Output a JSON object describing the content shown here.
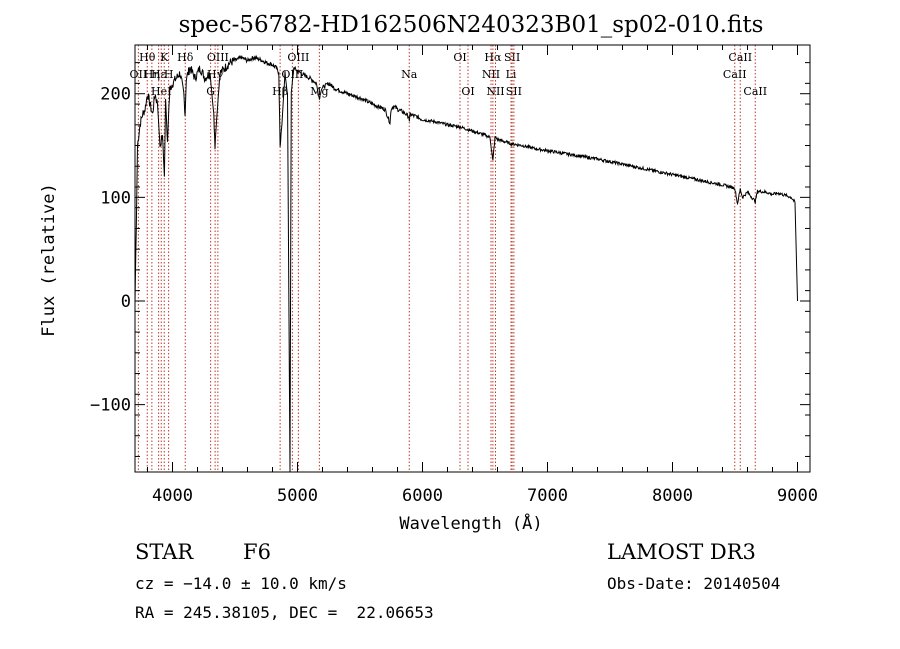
{
  "chart_data": {
    "type": "line",
    "title": "spec-56782-HD162506N240323B01_sp02-010.fits",
    "xlabel": "Wavelength (Å)",
    "ylabel": "Flux (relative)",
    "xlim": [
      3700,
      9100
    ],
    "ylim": [
      -165,
      247
    ],
    "x_ticks": [
      4000,
      5000,
      6000,
      7000,
      8000,
      9000
    ],
    "y_ticks": [
      -100,
      0,
      100,
      200
    ],
    "series": [
      {
        "name": "flux",
        "x": [
          3700,
          3710,
          3720,
          3740,
          3760,
          3780,
          3800,
          3820,
          3840,
          3860,
          3880,
          3900,
          3920,
          3935,
          3945,
          3960,
          3968,
          3980,
          4000,
          4030,
          4060,
          4090,
          4101,
          4110,
          4140,
          4180,
          4220,
          4260,
          4300,
          4330,
          4340,
          4350,
          4380,
          4420,
          4460,
          4500,
          4550,
          4600,
          4650,
          4700,
          4750,
          4800,
          4830,
          4850,
          4861,
          4875,
          4900,
          4920,
          4940,
          4950,
          4970,
          5000,
          5050,
          5100,
          5150,
          5175,
          5190,
          5250,
          5300,
          5400,
          5500,
          5600,
          5700,
          5740,
          5750,
          5770,
          5800,
          5850,
          5890,
          5895,
          5900,
          5950,
          6000,
          6100,
          6200,
          6300,
          6400,
          6500,
          6540,
          6563,
          6580,
          6600,
          6700,
          6800,
          6900,
          7000,
          7200,
          7400,
          7600,
          7800,
          8000,
          8200,
          8400,
          8498,
          8520,
          8542,
          8560,
          8600,
          8662,
          8680,
          8750,
          8800,
          8850,
          8900,
          8950,
          8980,
          9000
        ],
        "values": [
          -2,
          70,
          150,
          170,
          180,
          185,
          200,
          190,
          180,
          200,
          190,
          150,
          160,
          120,
          195,
          150,
          180,
          205,
          210,
          215,
          220,
          200,
          180,
          215,
          225,
          215,
          225,
          215,
          220,
          180,
          150,
          170,
          220,
          225,
          230,
          232,
          235,
          232,
          235,
          233,
          230,
          228,
          225,
          220,
          150,
          170,
          220,
          200,
          -165,
          200,
          225,
          222,
          218,
          215,
          210,
          195,
          205,
          210,
          205,
          200,
          196,
          190,
          185,
          172,
          186,
          188,
          185,
          182,
          178,
          172,
          180,
          178,
          175,
          173,
          170,
          168,
          164,
          160,
          158,
          135,
          158,
          156,
          152,
          150,
          147,
          145,
          141,
          137,
          132,
          127,
          122,
          117,
          112,
          109,
          94,
          108,
          100,
          105,
          96,
          106,
          105,
          103,
          104,
          102,
          100,
          95,
          0
        ]
      }
    ],
    "line_markers": [
      {
        "label": "Hθ",
        "x": 3798,
        "row": 1
      },
      {
        "label": "OII",
        "x": 3727,
        "row": 2
      },
      {
        "label": "Hη",
        "x": 3835,
        "row": 2
      },
      {
        "label": "Hε",
        "x": 3889,
        "row": 2
      },
      {
        "label": "HeI",
        "x": 3910,
        "row": 3
      },
      {
        "label": "K",
        "x": 3934,
        "row": 1
      },
      {
        "label": "H",
        "x": 3969,
        "row": 2
      },
      {
        "label": "Hδ",
        "x": 4102,
        "row": 1
      },
      {
        "label": "Hγ",
        "x": 4341,
        "row": 2
      },
      {
        "label": "G",
        "x": 4305,
        "row": 3
      },
      {
        "label": "OIII",
        "x": 4363,
        "row": 1
      },
      {
        "label": "Hβ",
        "x": 4861,
        "row": 3
      },
      {
        "label": "OIII",
        "x": 4959,
        "row": 2
      },
      {
        "label": "OIII",
        "x": 5007,
        "row": 1
      },
      {
        "label": "Mg",
        "x": 5175,
        "row": 3
      },
      {
        "label": "Na",
        "x": 5894,
        "row": 2
      },
      {
        "label": "OI",
        "x": 6300,
        "row": 1
      },
      {
        "label": "OI",
        "x": 6364,
        "row": 3
      },
      {
        "label": "Hα",
        "x": 6563,
        "row": 1
      },
      {
        "label": "NII",
        "x": 6548,
        "row": 2
      },
      {
        "label": "NII",
        "x": 6584,
        "row": 3
      },
      {
        "label": "SII",
        "x": 6717,
        "row": 1
      },
      {
        "label": "Li",
        "x": 6708,
        "row": 2
      },
      {
        "label": "SII",
        "x": 6731,
        "row": 3
      },
      {
        "label": "CaII",
        "x": 8542,
        "row": 1
      },
      {
        "label": "CaII",
        "x": 8498,
        "row": 2
      },
      {
        "label": "CaII",
        "x": 8662,
        "row": 3
      }
    ]
  },
  "info": {
    "object_class": "STAR",
    "subclass": "F6",
    "survey": "LAMOST DR3",
    "redshift": "cz = −14.0 ± 10.0 km/s",
    "obs_date": "Obs-Date: 20140504",
    "coords": "RA = 245.38105, DEC =  22.06653"
  },
  "colors": {
    "line_marker": "#c0392b",
    "spectrum": "#000000"
  }
}
